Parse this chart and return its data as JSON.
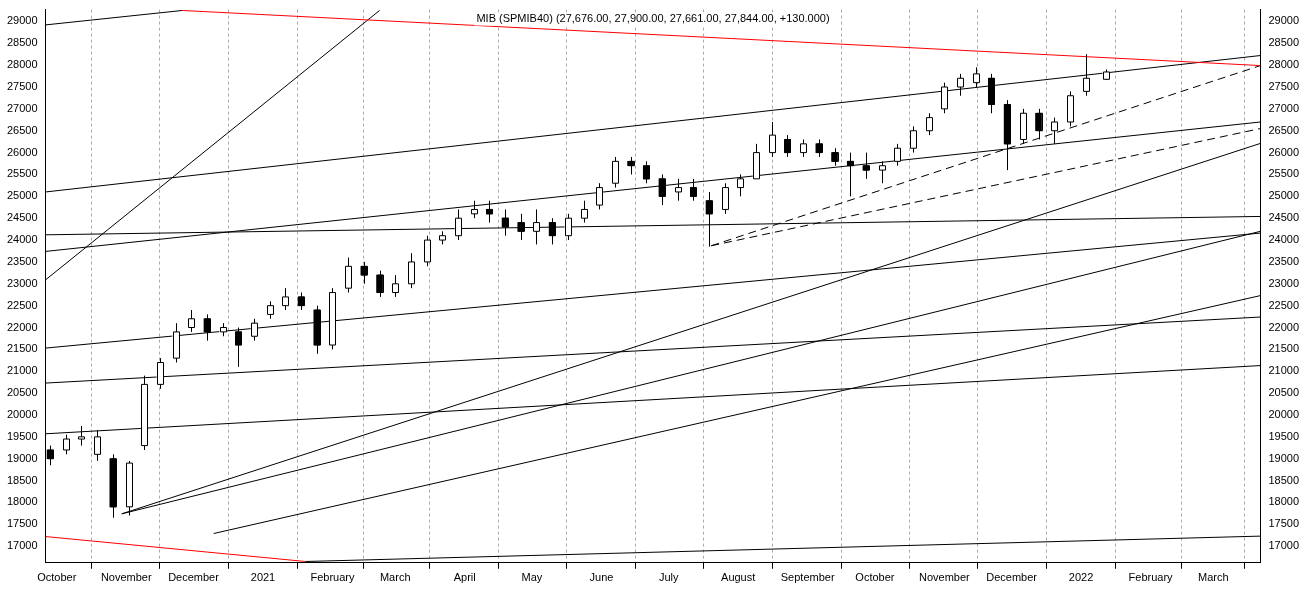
{
  "chart_data": {
    "type": "candlestick",
    "title": "MIB (SPMIB40) (27,676.00, 27,900.00, 27,661.00, 27,844.00, +130.000)",
    "x": [
      "2020-09-28",
      "2020-10-05",
      "2020-10-12",
      "2020-10-19",
      "2020-10-26",
      "2020-11-02",
      "2020-11-09",
      "2020-11-16",
      "2020-11-23",
      "2020-11-30",
      "2020-12-07",
      "2020-12-14",
      "2020-12-21",
      "2020-12-28",
      "2021-01-04",
      "2021-01-11",
      "2021-01-18",
      "2021-01-25",
      "2021-02-01",
      "2021-02-08",
      "2021-02-15",
      "2021-02-22",
      "2021-03-01",
      "2021-03-08",
      "2021-03-15",
      "2021-03-22",
      "2021-03-29",
      "2021-04-05",
      "2021-04-12",
      "2021-04-19",
      "2021-04-26",
      "2021-05-03",
      "2021-05-10",
      "2021-05-17",
      "2021-05-24",
      "2021-05-31",
      "2021-06-07",
      "2021-06-14",
      "2021-06-21",
      "2021-06-28",
      "2021-07-05",
      "2021-07-12",
      "2021-07-19",
      "2021-07-26",
      "2021-08-02",
      "2021-08-09",
      "2021-08-16",
      "2021-08-23",
      "2021-08-30",
      "2021-09-06",
      "2021-09-13",
      "2021-09-20",
      "2021-09-27",
      "2021-10-04",
      "2021-10-11",
      "2021-10-18",
      "2021-10-25",
      "2021-11-01",
      "2021-11-08",
      "2021-11-15",
      "2021-11-22",
      "2021-11-29",
      "2021-12-06",
      "2021-12-13",
      "2021-12-20",
      "2021-12-27",
      "2022-01-03",
      "2022-01-12"
    ],
    "ohlc": [
      [
        19200,
        19300,
        18850,
        19000
      ],
      [
        19200,
        19550,
        19100,
        19450
      ],
      [
        19450,
        19750,
        19300,
        19500
      ],
      [
        19100,
        19650,
        18950,
        19500
      ],
      [
        19000,
        19100,
        17650,
        17900
      ],
      [
        17900,
        18950,
        17700,
        18900
      ],
      [
        19300,
        20900,
        19200,
        20700
      ],
      [
        20700,
        21300,
        20600,
        21200
      ],
      [
        21300,
        22100,
        21200,
        21900
      ],
      [
        22000,
        22400,
        21900,
        22200
      ],
      [
        22200,
        22300,
        21700,
        21900
      ],
      [
        21900,
        22100,
        21800,
        22000
      ],
      [
        21900,
        22000,
        21100,
        21600
      ],
      [
        21800,
        22200,
        21700,
        22100
      ],
      [
        22300,
        22600,
        22200,
        22500
      ],
      [
        22500,
        22900,
        22400,
        22700
      ],
      [
        22700,
        22800,
        22400,
        22500
      ],
      [
        22400,
        22500,
        21400,
        21600
      ],
      [
        21600,
        22900,
        21500,
        22800
      ],
      [
        22900,
        23600,
        22800,
        23400
      ],
      [
        23400,
        23500,
        23000,
        23200
      ],
      [
        23200,
        23300,
        22700,
        22800
      ],
      [
        22800,
        23200,
        22700,
        23000
      ],
      [
        23000,
        23700,
        22900,
        23500
      ],
      [
        23500,
        24100,
        23400,
        24000
      ],
      [
        24000,
        24200,
        23900,
        24100
      ],
      [
        24100,
        24700,
        24000,
        24500
      ],
      [
        24600,
        24900,
        24500,
        24700
      ],
      [
        24700,
        24900,
        24400,
        24600
      ],
      [
        24500,
        24700,
        24100,
        24300
      ],
      [
        24400,
        24600,
        24000,
        24200
      ],
      [
        24200,
        24700,
        23900,
        24400
      ],
      [
        24400,
        24500,
        23900,
        24100
      ],
      [
        24100,
        24600,
        24000,
        24500
      ],
      [
        24500,
        24900,
        24400,
        24700
      ],
      [
        24800,
        25300,
        24700,
        25200
      ],
      [
        25300,
        25900,
        25200,
        25800
      ],
      [
        25800,
        25900,
        25500,
        25700
      ],
      [
        25700,
        25800,
        25300,
        25400
      ],
      [
        25400,
        25500,
        24800,
        25000
      ],
      [
        25100,
        25400,
        24900,
        25200
      ],
      [
        25200,
        25400,
        24900,
        25000
      ],
      [
        24900,
        25100,
        23850,
        24600
      ],
      [
        24700,
        25300,
        24600,
        25200
      ],
      [
        25200,
        25500,
        25000,
        25400
      ],
      [
        25400,
        26200,
        25400,
        26000
      ],
      [
        26000,
        26700,
        25900,
        26400
      ],
      [
        26300,
        26400,
        25900,
        26000
      ],
      [
        26000,
        26300,
        25900,
        26200
      ],
      [
        26200,
        26300,
        25900,
        26000
      ],
      [
        26000,
        26100,
        25700,
        25800
      ],
      [
        25800,
        26000,
        25000,
        25700
      ],
      [
        25700,
        26000,
        25400,
        25600
      ],
      [
        25600,
        25800,
        25300,
        25700
      ],
      [
        25800,
        26200,
        25700,
        26100
      ],
      [
        26100,
        26600,
        26000,
        26500
      ],
      [
        26500,
        26900,
        26400,
        26800
      ],
      [
        27000,
        27600,
        26900,
        27500
      ],
      [
        27500,
        27800,
        27300,
        27700
      ],
      [
        27600,
        27950,
        27500,
        27800
      ],
      [
        27700,
        27800,
        26900,
        27100
      ],
      [
        27100,
        27200,
        25600,
        26200
      ],
      [
        26300,
        27000,
        26200,
        26900
      ],
      [
        26900,
        27000,
        26300,
        26500
      ],
      [
        26500,
        26800,
        26200,
        26700
      ],
      [
        26700,
        27400,
        26600,
        27300
      ],
      [
        27400,
        28250,
        27300,
        27700
      ],
      [
        27676,
        27900,
        27661,
        27844
      ]
    ],
    "series": [
      {
        "type": "line",
        "color": "#ff0000",
        "x": [
          "2020-09-26",
          "2021-01-20"
        ],
        "values": [
          17220,
          16650
        ]
      },
      {
        "type": "line",
        "color": "#ff0000",
        "x": [
          "2020-11-26",
          "2022-03-22"
        ],
        "values": [
          29250,
          27990
        ]
      },
      {
        "type": "line",
        "color": "#000000",
        "x": [
          "2020-09-26",
          "2020-11-26"
        ],
        "values": [
          28920,
          29250
        ]
      },
      {
        "type": "line",
        "color": "#000000",
        "x": [
          "2020-09-26",
          "2022-03-22"
        ],
        "values": [
          23740,
          26700
        ]
      },
      {
        "type": "line",
        "color": "#000000",
        "x": [
          "2020-09-26",
          "2022-03-22"
        ],
        "values": [
          20730,
          22240
        ]
      },
      {
        "type": "line",
        "color": "#000000",
        "x": [
          "2020-09-26",
          "2022-03-22"
        ],
        "values": [
          19570,
          21130
        ]
      },
      {
        "type": "line",
        "color": "#000000",
        "x": [
          "2021-01-20",
          "2022-03-22"
        ],
        "values": [
          16650,
          17230
        ]
      },
      {
        "type": "line",
        "color": "#000000",
        "x": [
          "2020-09-26",
          "2022-03-22"
        ],
        "values": [
          24120,
          24540
        ]
      },
      {
        "type": "line",
        "color": "#000000",
        "x": [
          "2020-09-26",
          "2022-03-22"
        ],
        "values": [
          21530,
          24160
        ]
      },
      {
        "type": "line",
        "color": "#000000",
        "x": [
          "2020-09-26",
          "2022-03-22"
        ],
        "values": [
          25100,
          28220
        ]
      },
      {
        "type": "line",
        "color": "#000000",
        "x": [
          "2020-09-26",
          "2021-02-22"
        ],
        "values": [
          23090,
          29250
        ]
      },
      {
        "type": "line",
        "color": "#000000",
        "x": [
          "2020-12-10",
          "2022-03-22"
        ],
        "values": [
          17290,
          22730
        ]
      },
      {
        "type": "line",
        "color": "#000000",
        "x": [
          "2020-10-30",
          "2022-03-22"
        ],
        "values": [
          17740,
          24200
        ]
      },
      {
        "type": "line",
        "color": "#000000",
        "x": [
          "2020-10-30",
          "2022-03-22"
        ],
        "values": [
          17740,
          26210
        ]
      },
      {
        "type": "line",
        "color": "#000000",
        "line_style": "dashed",
        "x": [
          "2021-07-20",
          "2022-03-22"
        ],
        "values": [
          23870,
          27990
        ]
      },
      {
        "type": "line",
        "color": "#000000",
        "line_style": "dashed",
        "x": [
          "2021-07-20",
          "2022-03-22"
        ],
        "values": [
          23870,
          26550
        ]
      }
    ],
    "xlim": [
      "2020-09-26",
      "2022-03-22"
    ],
    "xticks": [
      {
        "value": "2020-10-01",
        "label": "October"
      },
      {
        "value": "2020-11-01",
        "label": "November"
      },
      {
        "value": "2020-12-01",
        "label": "December"
      },
      {
        "value": "2021-01-01",
        "label": "2021"
      },
      {
        "value": "2021-02-01",
        "label": "February"
      },
      {
        "value": "2021-03-01",
        "label": "March"
      },
      {
        "value": "2021-04-01",
        "label": "April"
      },
      {
        "value": "2021-05-01",
        "label": "May"
      },
      {
        "value": "2021-06-01",
        "label": "June"
      },
      {
        "value": "2021-07-01",
        "label": "July"
      },
      {
        "value": "2021-08-01",
        "label": "August"
      },
      {
        "value": "2021-09-01",
        "label": "September"
      },
      {
        "value": "2021-10-01",
        "label": "October"
      },
      {
        "value": "2021-11-01",
        "label": "November"
      },
      {
        "value": "2021-12-01",
        "label": "December"
      },
      {
        "value": "2022-01-01",
        "label": "2022"
      },
      {
        "value": "2022-02-01",
        "label": "February"
      },
      {
        "value": "2022-03-01",
        "label": "March"
      }
    ],
    "ylim": [
      16620,
      29270
    ],
    "yticks": [
      17000,
      17500,
      18000,
      18500,
      19000,
      19500,
      20000,
      20500,
      21000,
      21500,
      22000,
      22500,
      23000,
      23500,
      24000,
      24500,
      25000,
      25500,
      26000,
      26500,
      27000,
      27500,
      28000,
      28500,
      29000
    ],
    "y2lim": [
      16620,
      29270
    ],
    "y2ticks": [
      17000,
      17500,
      18000,
      18500,
      19000,
      19500,
      20000,
      20500,
      21000,
      21500,
      22000,
      22500,
      23000,
      23500,
      24000,
      24500,
      25000,
      25500,
      26000,
      26500,
      27000,
      27500,
      28000,
      28500,
      29000
    ],
    "grid": "x",
    "legend": false
  }
}
